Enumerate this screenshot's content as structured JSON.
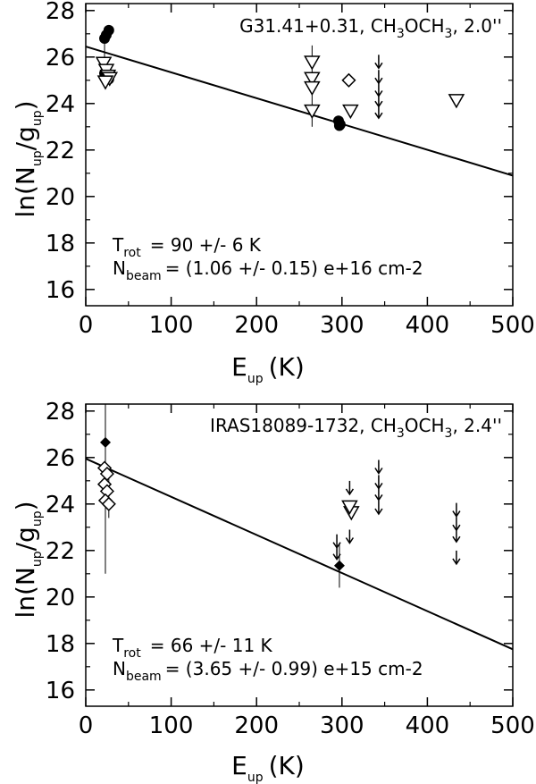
{
  "chart_data": [
    {
      "type": "scatter",
      "title": "G31.41+0.31, CH3OCH3, 2.0''",
      "title_main": "G31.41+0.31, CH",
      "title_s1": "3",
      "title_mid": "OCH",
      "title_s2": "3",
      "title_end": ", 2.0''",
      "xlabel": "E_up (K)",
      "ylabel": "ln(N_up/g_up)",
      "xlim": [
        0,
        500
      ],
      "ylim": [
        15.3,
        28.3
      ],
      "x_ticks": [
        0,
        100,
        200,
        300,
        400,
        500
      ],
      "y_ticks": [
        16,
        18,
        20,
        22,
        24,
        26,
        28
      ],
      "trot_text": "=  90 +/-  6 K",
      "nbeam_text": "= (1.06 +/- 0.15) e+16 cm-2",
      "fit_line": {
        "x": [
          0,
          500
        ],
        "y": [
          26.45,
          20.9
        ]
      },
      "series": [
        {
          "marker": "filled-circle",
          "points": [
            {
              "x": 22,
              "y": 26.8
            },
            {
              "x": 24,
              "y": 26.95
            },
            {
              "x": 27,
              "y": 27.15
            },
            {
              "x": 22,
              "y": 25.3
            },
            {
              "x": 25,
              "y": 25.1
            },
            {
              "x": 27,
              "y": 25.05
            },
            {
              "x": 296,
              "y": 23.25
            },
            {
              "x": 297,
              "y": 23.05
            },
            {
              "x": 298,
              "y": 23.1
            }
          ]
        },
        {
          "marker": "open-triangle-down",
          "points": [
            {
              "x": 21,
              "y": 25.75
            },
            {
              "x": 24,
              "y": 25.45
            },
            {
              "x": 26,
              "y": 25.2
            },
            {
              "x": 28,
              "y": 25.1
            },
            {
              "x": 23,
              "y": 24.95
            },
            {
              "x": 265,
              "y": 25.8
            },
            {
              "x": 265,
              "y": 25.1
            },
            {
              "x": 265,
              "y": 24.7
            },
            {
              "x": 265,
              "y": 23.7
            },
            {
              "x": 310,
              "y": 23.7
            },
            {
              "x": 434,
              "y": 24.15
            }
          ]
        },
        {
          "marker": "open-diamond",
          "points": [
            {
              "x": 308,
              "y": 25.0
            }
          ]
        },
        {
          "marker": "upper-limit-arrow",
          "points": [
            {
              "x": 343,
              "y": 25.75
            },
            {
              "x": 343,
              "y": 25.1
            },
            {
              "x": 343,
              "y": 24.55
            },
            {
              "x": 343,
              "y": 24.1
            },
            {
              "x": 343,
              "y": 23.6
            }
          ]
        }
      ],
      "error_bars": [
        {
          "x": 265,
          "y_low": 23.0,
          "y_high": 26.5
        },
        {
          "x": 22,
          "y_low": 25.3,
          "y_high": 26.9
        }
      ]
    },
    {
      "type": "scatter",
      "title": "IRAS18089-1732, CH3OCH3, 2.4''",
      "title_main": "IRAS18089-1732, CH",
      "title_s1": "3",
      "title_mid": "OCH",
      "title_s2": "3",
      "title_end": ", 2.4''",
      "xlabel": "E_up (K)",
      "ylabel": "ln(N_up/g_up)",
      "xlim": [
        0,
        500
      ],
      "ylim": [
        15.3,
        28.3
      ],
      "x_ticks": [
        0,
        100,
        200,
        300,
        400,
        500
      ],
      "y_ticks": [
        16,
        18,
        20,
        22,
        24,
        26,
        28
      ],
      "trot_text": "=  66 +/- 11 K",
      "nbeam_text": "= (3.65 +/- 0.99) e+15 cm-2",
      "fit_line": {
        "x": [
          0,
          500
        ],
        "y": [
          25.95,
          17.75
        ]
      },
      "series": [
        {
          "marker": "filled-diamond",
          "points": [
            {
              "x": 23,
              "y": 26.65
            },
            {
              "x": 297,
              "y": 21.35
            }
          ]
        },
        {
          "marker": "open-diamond",
          "points": [
            {
              "x": 22,
              "y": 25.55
            },
            {
              "x": 25,
              "y": 25.3
            },
            {
              "x": 22,
              "y": 24.85
            },
            {
              "x": 25,
              "y": 24.55
            },
            {
              "x": 23,
              "y": 24.15
            },
            {
              "x": 27,
              "y": 24.0
            }
          ]
        },
        {
          "marker": "open-triangle-down",
          "points": [
            {
              "x": 311,
              "y": 23.65
            },
            {
              "x": 309,
              "y": 23.9
            }
          ]
        },
        {
          "marker": "upper-limit-arrow",
          "points": [
            {
              "x": 294,
              "y": 22.35
            },
            {
              "x": 294,
              "y": 21.85
            },
            {
              "x": 309,
              "y": 24.65
            },
            {
              "x": 309,
              "y": 22.55
            },
            {
              "x": 343,
              "y": 25.55
            },
            {
              "x": 343,
              "y": 24.9
            },
            {
              "x": 343,
              "y": 24.4
            },
            {
              "x": 343,
              "y": 23.8
            },
            {
              "x": 434,
              "y": 23.7
            },
            {
              "x": 434,
              "y": 23.1
            },
            {
              "x": 434,
              "y": 22.6
            },
            {
              "x": 434,
              "y": 21.65
            }
          ]
        }
      ],
      "error_bars": [
        {
          "x": 23,
          "y_low": 21.0,
          "y_high": 28.3
        },
        {
          "x": 27,
          "y_low": 23.4,
          "y_high": 25.4
        },
        {
          "x": 297,
          "y_low": 20.4,
          "y_high": 22.3
        }
      ]
    }
  ]
}
